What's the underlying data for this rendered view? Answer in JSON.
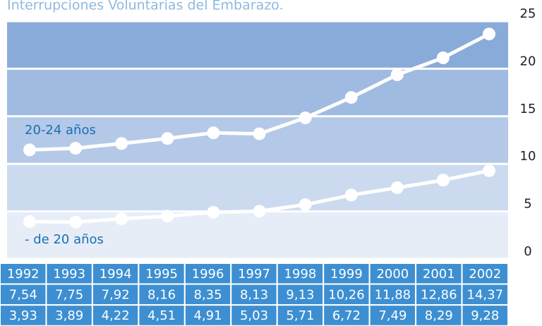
{
  "chart_data": {
    "type": "line",
    "stacked": true,
    "title": "Interrupciones Voluntarias del Embarazo.",
    "categories": [
      "1992",
      "1993",
      "1994",
      "1995",
      "1996",
      "1997",
      "1998",
      "1999",
      "2000",
      "2001",
      "2002"
    ],
    "series": [
      {
        "name": "20-24 años",
        "color": "#ffffff",
        "values": [
          7.54,
          7.75,
          7.92,
          8.16,
          8.35,
          8.13,
          9.13,
          10.26,
          11.88,
          12.86,
          14.37
        ],
        "value_labels": [
          "7,54",
          "7,75",
          "7,92",
          "8,16",
          "8,35",
          "8,13",
          "9,13",
          "10,26",
          "11,88",
          "12,86",
          "14,37"
        ]
      },
      {
        "name": "- de 20 años",
        "color": "#ffffff",
        "values": [
          3.93,
          3.89,
          4.22,
          4.51,
          4.91,
          5.03,
          5.71,
          6.72,
          7.49,
          8.29,
          9.28
        ],
        "value_labels": [
          "3,93",
          "3,89",
          "4,22",
          "4,51",
          "4,91",
          "5,03",
          "5,71",
          "6,72",
          "7,49",
          "8,29",
          "9,28"
        ]
      }
    ],
    "ylim": [
      0,
      25
    ],
    "yticks": [
      0,
      5,
      10,
      15,
      20,
      25
    ],
    "grid": true
  }
}
